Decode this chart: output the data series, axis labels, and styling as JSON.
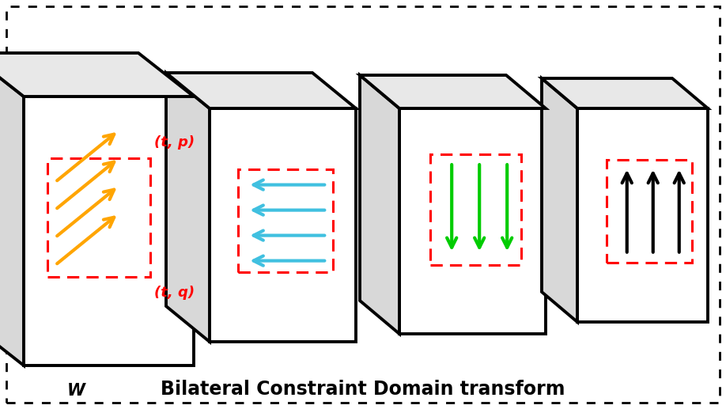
{
  "title": "Bilateral Constraint Domain transform",
  "title_fontsize": 17,
  "title_fontweight": "bold",
  "background_color": "#ffffff",
  "arrow_colors": {
    "panel1": "#FFA500",
    "panel2": "#40C0E0",
    "panel3": "#00CC00",
    "panel4": "#000000"
  },
  "red_box_color": "#FF0000",
  "label_color": "#FF0000",
  "fig_width": 9.18,
  "fig_height": 5.17,
  "dpi": 100,
  "annotations": {
    "tp_label": "(t, p)",
    "tq_label": "(t, q)",
    "p_label": "p)",
    "q_label": "q)",
    "w_label": "W"
  }
}
